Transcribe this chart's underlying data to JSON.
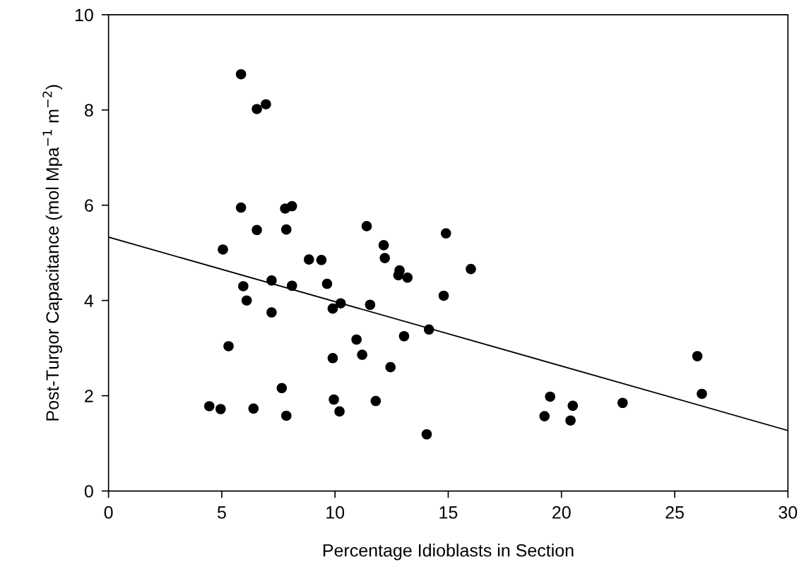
{
  "chart_data": {
    "type": "scatter",
    "xlabel": "Percentage Idioblasts in Section",
    "ylabel": "Post-Turgor Capacitance (mol Mpa$^{−1}$ m$^{−2}$)",
    "xlim": [
      0,
      30
    ],
    "xticks": [
      0,
      5,
      10,
      15,
      20,
      25,
      30
    ],
    "ylim": [
      0,
      10
    ],
    "yticks": [
      0,
      2,
      4,
      6,
      8,
      10
    ],
    "grid": false,
    "series": [
      {
        "marker": "circle",
        "color": "#000000",
        "x": [
          4.45,
          4.95,
          5.05,
          5.3,
          5.85,
          5.85,
          5.95,
          6.1,
          6.4,
          6.55,
          6.55,
          6.95,
          7.2,
          7.2,
          7.65,
          7.8,
          7.85,
          7.85,
          8.1,
          8.1,
          8.85,
          9.4,
          9.65,
          9.9,
          9.9,
          9.95,
          10.2,
          10.25,
          10.95,
          11.2,
          11.4,
          11.55,
          11.8,
          12.15,
          12.2,
          12.45,
          12.8,
          12.85,
          13.05,
          13.2,
          14.05,
          14.15,
          14.8,
          14.9,
          16.0,
          19.25,
          19.5,
          20.4,
          20.5,
          22.7,
          26.0,
          26.2
        ],
        "values": [
          1.78,
          1.72,
          5.07,
          3.04,
          8.75,
          5.95,
          4.3,
          4.0,
          1.73,
          8.02,
          5.48,
          8.12,
          4.42,
          3.75,
          2.16,
          5.93,
          5.49,
          1.58,
          5.98,
          4.31,
          4.86,
          4.85,
          4.35,
          3.83,
          2.79,
          1.92,
          1.67,
          3.94,
          3.18,
          2.86,
          5.56,
          3.91,
          1.89,
          5.16,
          4.89,
          2.6,
          4.53,
          4.63,
          3.25,
          4.48,
          1.19,
          3.39,
          4.1,
          5.41,
          4.66,
          1.57,
          1.98,
          1.48,
          1.79,
          1.85,
          2.83,
          2.04
        ]
      },
      {
        "type": "line",
        "marker": "none",
        "color": "#000000",
        "x": [
          0,
          30
        ],
        "values": [
          5.33,
          1.27
        ]
      }
    ]
  }
}
